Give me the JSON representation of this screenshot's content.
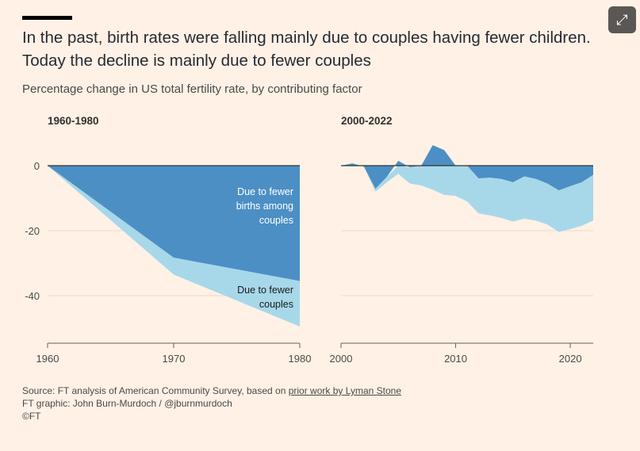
{
  "title": "In the past, birth rates were falling mainly due to couples having fewer children. Today the decline is mainly due to fewer couples",
  "subtitle": "Percentage change in US total fertility rate, by contributing factor",
  "expand_icon": "expand-arrows-icon",
  "colors": {
    "births": "#4b8fc5",
    "couples": "#a7d8e9",
    "background": "#fff1e5"
  },
  "chart_data": [
    {
      "type": "area",
      "title": "1960-1980",
      "x": [
        1960,
        1970,
        1980
      ],
      "series": [
        {
          "name": "Due to fewer births among couples",
          "values": [
            0,
            -28.3,
            -35.5
          ]
        },
        {
          "name": "Due to fewer couples (total boundary)",
          "values": [
            0,
            -33.5,
            -49.5
          ]
        }
      ],
      "xticks": [
        "1960",
        "1970",
        "1980"
      ],
      "yticks": [
        "0",
        "-20",
        "-40"
      ],
      "ylim": [
        -50,
        7
      ],
      "annotations": {
        "births": [
          "Due to fewer",
          "births among",
          "couples"
        ],
        "couples": [
          "Due to fewer",
          "couples"
        ]
      }
    },
    {
      "type": "area",
      "title": "2000-2022",
      "x": [
        2000,
        2001,
        2002,
        2003,
        2004,
        2005,
        2006,
        2007,
        2008,
        2009,
        2010,
        2011,
        2012,
        2013,
        2014,
        2015,
        2016,
        2017,
        2018,
        2019,
        2020,
        2021,
        2022
      ],
      "series": [
        {
          "name": "Due to fewer births among couples",
          "values": [
            0,
            0.7,
            -0.3,
            -7.1,
            -3.4,
            1.5,
            -0.5,
            0,
            6.3,
            4.8,
            0,
            0,
            -3.9,
            -3.7,
            -4.1,
            -5.1,
            -3.3,
            -4.1,
            -5.5,
            -7.6,
            -6.3,
            -5.1,
            -2.8
          ]
        },
        {
          "name": "Due to fewer couples (total boundary)",
          "values": [
            0,
            0.3,
            -0.3,
            -8,
            -5.1,
            -2.5,
            -5.5,
            -6.1,
            -7.4,
            -9,
            -9.3,
            -11,
            -14.7,
            -15.3,
            -16.1,
            -17.2,
            -16.3,
            -16.9,
            -18.1,
            -20.4,
            -19.5,
            -18.5,
            -16.9
          ]
        }
      ],
      "xticks": [
        "2000",
        "2010",
        "2020"
      ],
      "ylim": [
        -50,
        7
      ]
    }
  ],
  "footer": {
    "source_prefix": "Source: FT analysis of American Community Survey, based on ",
    "source_link": "prior work by Lyman Stone",
    "graphic": "FT graphic: John Burn-Murdoch / @jburnmurdoch",
    "copyright": "©FT"
  }
}
